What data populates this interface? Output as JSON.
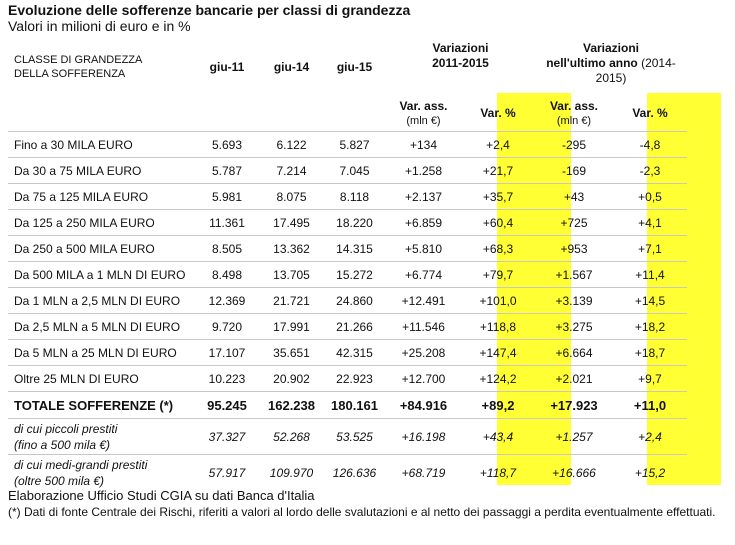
{
  "title": "Evoluzione delle sofferenze bancarie per classi di grandezza",
  "subtitle": "Valori in milioni di euro e in %",
  "header": {
    "class_line1": "CLASSE DI GRANDEZZA",
    "class_line2": "DELLA SOFFERENZA",
    "periods": [
      "giu-11",
      "giu-14",
      "giu-15"
    ],
    "group1_line1": "Variazioni",
    "group1_line2": "2011-2015",
    "group2_line1": "Variazioni",
    "group2_line2a": "nell'ultimo anno",
    "group2_line2b": " (2014-",
    "group2_line3": "2015)",
    "var_ass": "Var. ass.",
    "var_ass_unit": "(mln €)",
    "var_pct": "Var. %"
  },
  "rows": [
    {
      "label": "Fino a 30 MILA EURO",
      "v11": "5.693",
      "v14": "6.122",
      "v15": "5.827",
      "a1": "+134",
      "p1": "+2,4",
      "a2": "-295",
      "p2": "-4,8"
    },
    {
      "label": "Da 30 a 75 MILA EURO",
      "v11": "5.787",
      "v14": "7.214",
      "v15": "7.045",
      "a1": "+1.258",
      "p1": "+21,7",
      "a2": "-169",
      "p2": "-2,3"
    },
    {
      "label": "Da 75 a 125 MILA EURO",
      "v11": "5.981",
      "v14": "8.075",
      "v15": "8.118",
      "a1": "+2.137",
      "p1": "+35,7",
      "a2": "+43",
      "p2": "+0,5"
    },
    {
      "label": "Da 125 a 250 MILA EURO",
      "v11": "11.361",
      "v14": "17.495",
      "v15": "18.220",
      "a1": "+6.859",
      "p1": "+60,4",
      "a2": "+725",
      "p2": "+4,1"
    },
    {
      "label": "Da 250 a 500 MILA EURO",
      "v11": "8.505",
      "v14": "13.362",
      "v15": "14.315",
      "a1": "+5.810",
      "p1": "+68,3",
      "a2": "+953",
      "p2": "+7,1"
    },
    {
      "label": "Da 500 MILA a 1 MLN DI EURO",
      "v11": "8.498",
      "v14": "13.705",
      "v15": "15.272",
      "a1": "+6.774",
      "p1": "+79,7",
      "a2": "+1.567",
      "p2": "+11,4"
    },
    {
      "label": "Da 1 MLN a 2,5 MLN DI EURO",
      "v11": "12.369",
      "v14": "21.721",
      "v15": "24.860",
      "a1": "+12.491",
      "p1": "+101,0",
      "a2": "+3.139",
      "p2": "+14,5"
    },
    {
      "label": "Da 2,5 MLN a 5 MLN DI EURO",
      "v11": "9.720",
      "v14": "17.991",
      "v15": "21.266",
      "a1": "+11.546",
      "p1": "+118,8",
      "a2": "+3.275",
      "p2": "+18,2"
    },
    {
      "label": "Da 5 MLN a 25 MLN DI EURO",
      "v11": "17.107",
      "v14": "35.651",
      "v15": "42.315",
      "a1": "+25.208",
      "p1": "+147,4",
      "a2": "+6.664",
      "p2": "+18,7"
    },
    {
      "label": "Oltre 25 MLN DI EURO",
      "v11": "10.223",
      "v14": "20.902",
      "v15": "22.923",
      "a1": "+12.700",
      "p1": "+124,2",
      "a2": "+2.021",
      "p2": "+9,7"
    }
  ],
  "total": {
    "label": "TOTALE SOFFERENZE (*)",
    "v11": "95.245",
    "v14": "162.238",
    "v15": "180.161",
    "a1": "+84.916",
    "p1": "+89,2",
    "a2": "+17.923",
    "p2": "+11,0"
  },
  "sub_rows": [
    {
      "label1": "di cui piccoli prestiti",
      "label2": "(fino a 500 mila €)",
      "v11": "37.327",
      "v14": "52.268",
      "v15": "53.525",
      "a1": "+16.198",
      "p1": "+43,4",
      "a2": "+1.257",
      "p2": "+2,4"
    },
    {
      "label1": "di cui medi-grandi prestiti",
      "label2": "(oltre 500 mila €)",
      "v11": "57.917",
      "v14": "109.970",
      "v15": "126.636",
      "a1": "+68.719",
      "p1": "+118,7",
      "a2": "+16.666",
      "p2": "+15,2"
    }
  ],
  "source": "Elaborazione Ufficio Studi CGIA su dati Banca d'Italia",
  "note": "(*) Dati di fonte Centrale dei Rischi, riferiti a valori al lordo delle svalutazioni e al netto dei passaggi a perdita eventualmente effettuati.",
  "highlight_color": "#ffff33"
}
